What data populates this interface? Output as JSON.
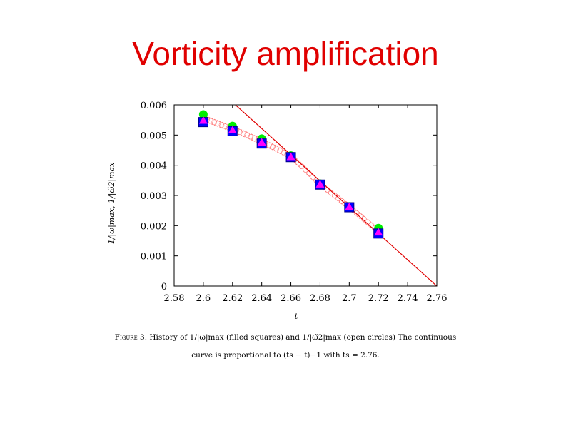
{
  "slide": {
    "title": "Vorticity amplification"
  },
  "figure": {
    "caption_label": "Figure 3.",
    "caption_line1": "History of 1/|ω|max (filled squares) and 1/|ω̃2|max (open circles) The continuous",
    "caption_line2": "curve is proportional to (ts − t)−1 with ts = 2.76."
  },
  "chart_data": {
    "type": "scatter",
    "xlabel": "t",
    "ylabel": "1/|ω|max, 1/|ω̃2|max",
    "xlim": [
      2.58,
      2.76
    ],
    "ylim": [
      0,
      0.006
    ],
    "xticks": [
      "2.58",
      "2.6",
      "2.62",
      "2.64",
      "2.66",
      "2.68",
      "2.7",
      "2.72",
      "2.74",
      "2.76"
    ],
    "yticks": [
      "0",
      "0.001",
      "0.002",
      "0.003",
      "0.004",
      "0.005",
      "0.006"
    ],
    "grid": false,
    "series": [
      {
        "marker": "square",
        "color": "#0000ff",
        "x": [
          2.6,
          2.62,
          2.64,
          2.66,
          2.68,
          2.7,
          2.72
        ],
        "y": [
          0.00543,
          0.00513,
          0.00472,
          0.00427,
          0.00336,
          0.00261,
          0.00174
        ]
      },
      {
        "marker": "circle",
        "color": "#00ee00",
        "x": [
          2.6,
          2.62,
          2.64,
          2.66,
          2.68,
          2.7,
          2.72
        ],
        "y": [
          0.00568,
          0.0053,
          0.00488,
          0.00432,
          0.00339,
          0.00263,
          0.00192
        ]
      },
      {
        "marker": "triangle",
        "color": "#ff00ff",
        "x": [
          2.6,
          2.62,
          2.64,
          2.66,
          2.68,
          2.7,
          2.72
        ],
        "y": [
          0.00548,
          0.00516,
          0.00476,
          0.00428,
          0.00337,
          0.00262,
          0.00178
        ]
      }
    ],
    "fit_line": {
      "color": "#e00000",
      "x": [
        2.622,
        2.76
      ],
      "y": [
        0.006,
        0.0
      ]
    },
    "band": {
      "color": "#ff7777",
      "x": [
        2.6,
        2.61,
        2.62,
        2.63,
        2.64,
        2.65,
        2.66,
        2.67,
        2.68,
        2.69,
        2.7,
        2.71,
        2.72
      ],
      "y": [
        0.00556,
        0.00538,
        0.0052,
        0.005,
        0.00478,
        0.00455,
        0.0043,
        0.00385,
        0.00337,
        0.003,
        0.00262,
        0.00222,
        0.00182
      ]
    }
  }
}
